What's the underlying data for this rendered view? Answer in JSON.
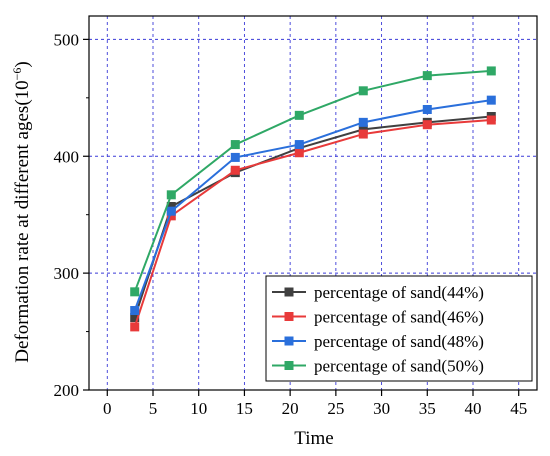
{
  "chart_data": {
    "type": "line",
    "xlabel": "Time",
    "ylabel_main": "Deformation rate at different ages(10",
    "ylabel_sup": "−6",
    "ylabel_end": ")",
    "xlim": [
      -2,
      47
    ],
    "ylim": [
      200,
      520
    ],
    "xticks": [
      0,
      5,
      10,
      15,
      20,
      25,
      30,
      35,
      40,
      45
    ],
    "yticks": [
      200,
      300,
      400,
      500
    ],
    "grid": true,
    "legend_position": "bottom-right",
    "x": [
      3,
      7,
      14,
      21,
      28,
      35,
      42
    ],
    "series": [
      {
        "name": "percentage of sand(44%)",
        "color": "#404040",
        "values": [
          262,
          357,
          386,
          407,
          423,
          429,
          434
        ]
      },
      {
        "name": "percentage of sand(46%)",
        "color": "#e83a3a",
        "values": [
          254,
          349,
          388,
          403,
          419,
          427,
          431
        ]
      },
      {
        "name": "percentage of sand(48%)",
        "color": "#2a6fdb",
        "values": [
          268,
          353,
          399,
          410,
          429,
          440,
          448
        ]
      },
      {
        "name": "percentage of sand(50%)",
        "color": "#2fa866",
        "values": [
          284,
          367,
          410,
          435,
          456,
          469,
          473
        ]
      }
    ]
  }
}
